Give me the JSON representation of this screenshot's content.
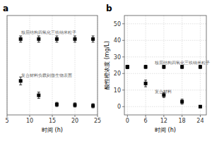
{
  "chart_data": [
    {
      "type": "scatter",
      "title": "a",
      "xlabel": "时间 (h)",
      "x": [
        8,
        12,
        16,
        20,
        24
      ],
      "xlim": [
        5,
        25
      ],
      "xticks": [
        5,
        10,
        15,
        20,
        25
      ],
      "ylim": [
        -2,
        36
      ],
      "tick_labels": "x",
      "grid": true,
      "marker": "square",
      "series": [
        {
          "color": "#000000",
          "values": [
            27,
            27,
            27,
            27,
            27
          ],
          "errors": [
            1.2,
            1.2,
            1.2,
            1.2,
            1.2
          ]
        },
        {
          "color": "#000000",
          "values": [
            11,
            5.5,
            2.0,
            1.8,
            1.5
          ],
          "errors": [
            1.5,
            1.2,
            0.8,
            0.8,
            0.8
          ]
        }
      ],
      "annotations": [
        {
          "text": "核层结构四氧化三铁纳米粒子",
          "x": 8.2,
          "y": 29.0
        },
        {
          "text": "复合材料负载到微生物表面",
          "x": 8.2,
          "y": 12.5
        }
      ]
    },
    {
      "type": "scatter",
      "title": "b",
      "xlabel": "时间 (h)",
      "ylabel": "酸性橙浓度 (mg/L)",
      "x": [
        0,
        6,
        12,
        18,
        24
      ],
      "xlim": [
        -1,
        26
      ],
      "xticks": [
        0,
        6,
        12,
        18,
        24
      ],
      "ylim": [
        -5,
        55
      ],
      "yticks": [
        0,
        10,
        20,
        30,
        40,
        50
      ],
      "grid": true,
      "marker": "square",
      "series": [
        {
          "color": "#000000",
          "values": [
            24,
            24,
            24,
            24,
            24
          ],
          "errors": [
            1.0,
            1.0,
            1.0,
            1.0,
            1.0
          ]
        },
        {
          "color": "#000000",
          "values": [
            24,
            14,
            7,
            3,
            0
          ],
          "errors": [
            1.0,
            2.0,
            1.5,
            1.5,
            0.5
          ]
        }
      ],
      "annotations": [
        {
          "text": "核层结构四氧化三铁纳米粒子",
          "x": 9,
          "y": 25.8
        },
        {
          "text": "复合材料",
          "x": 9,
          "y": 8.0
        }
      ]
    }
  ]
}
